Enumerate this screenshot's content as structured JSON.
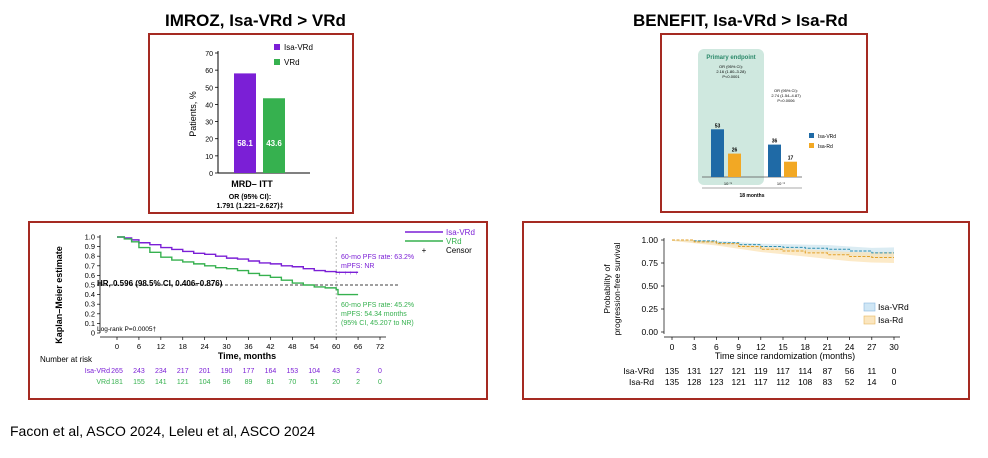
{
  "headings": {
    "left": "IMROZ, Isa-VRd > VRd",
    "right": "BENEFIT, Isa-VRd > Isa-Rd"
  },
  "citation": "Facon et al, ASCO 2024, Leleu et al, ASCO 2024",
  "colors": {
    "purple": "#7b1fd6",
    "green": "#36b14f",
    "blue": "#1f6aa6",
    "orange": "#f2a824",
    "border": "#a52a22",
    "teal_band": "#cfe8df"
  },
  "chart_data": [
    {
      "id": "imroz-mrd",
      "type": "bar",
      "ylabel": "Patients, %",
      "yticks": [
        0,
        10,
        20,
        30,
        40,
        50,
        60,
        70
      ],
      "ylim": [
        0,
        70
      ],
      "category": "MRD– ITT",
      "series": [
        {
          "name": "Isa-VRd",
          "value": 58.1,
          "label": "58.1"
        },
        {
          "name": "VRd",
          "value": 43.6,
          "label": "43.6"
        }
      ],
      "footnote_line1": "OR (95% CI):",
      "footnote_line2": "1.791 (1.221–2.627)‡"
    },
    {
      "id": "benefit-mrd",
      "type": "bar",
      "primary_label": "Primary endpoint",
      "group_labels": [
        "10⁻⁵",
        "10⁻⁶"
      ],
      "xlabel": "18 months",
      "stats": [
        {
          "line1": "OR (95% CI):",
          "line2": "2.16 (1.80–3.28)",
          "line3": "P<0.0001"
        },
        {
          "line1": "OR (95% CI):",
          "line2": "2.74 (1.54–4.87)",
          "line3": "P=0.0006"
        }
      ],
      "series": [
        {
          "name": "Isa-VRd",
          "values": [
            53,
            36
          ]
        },
        {
          "name": "Isa-Rd",
          "values": [
            26,
            17
          ]
        }
      ]
    },
    {
      "id": "imroz-km",
      "type": "line",
      "ylabel": "Kaplan–Meier estimate",
      "xlabel": "Time, months",
      "xticks": [
        0,
        6,
        12,
        18,
        24,
        30,
        36,
        42,
        48,
        54,
        60,
        66,
        72
      ],
      "yticks": [
        "0",
        "0.1",
        "0.2",
        "0.3",
        "0.4",
        "0.5",
        "0.6",
        "0.7",
        "0.8",
        "0.9",
        "1.0"
      ],
      "xlim": [
        0,
        72
      ],
      "ylim": [
        0,
        1
      ],
      "series": [
        {
          "name": "Isa-VRd",
          "x": [
            0,
            2,
            4,
            6,
            9,
            12,
            15,
            18,
            21,
            24,
            27,
            30,
            33,
            36,
            39,
            42,
            45,
            48,
            51,
            54,
            57,
            60,
            62,
            66
          ],
          "y": [
            1.0,
            0.99,
            0.97,
            0.94,
            0.92,
            0.89,
            0.87,
            0.85,
            0.83,
            0.82,
            0.8,
            0.78,
            0.77,
            0.75,
            0.73,
            0.72,
            0.7,
            0.69,
            0.67,
            0.65,
            0.64,
            0.632,
            0.632,
            0.632
          ]
        },
        {
          "name": "VRd",
          "x": [
            0,
            2,
            4,
            6,
            9,
            12,
            15,
            18,
            21,
            24,
            27,
            30,
            33,
            36,
            39,
            42,
            45,
            48,
            51,
            54,
            57,
            60,
            60.5,
            66
          ],
          "y": [
            1.0,
            0.98,
            0.95,
            0.89,
            0.84,
            0.79,
            0.76,
            0.74,
            0.72,
            0.7,
            0.68,
            0.67,
            0.65,
            0.62,
            0.6,
            0.58,
            0.55,
            0.52,
            0.5,
            0.48,
            0.47,
            0.452,
            0.4,
            0.4
          ]
        }
      ],
      "legend": [
        "Isa-VRd",
        "VRd",
        "Censor"
      ],
      "annotations": {
        "hr": "HR, 0.596 (98.5% CI, 0.406–0.876)",
        "logrank": "Log-rank P=0.0005†",
        "isa_rate": "60-mo PFS rate: 63.2%",
        "isa_mpfs": "mPFS: NR",
        "vrd_rate": "60-mo PFS rate: 45.2%",
        "vrd_mpfs": "mPFS: 54.34 months",
        "vrd_ci": "(95% CI, 45.207 to NR)"
      },
      "risk_title": "Number at risk",
      "risk_table": [
        {
          "name": "Isa-VRd",
          "values": [
            "265",
            "243",
            "234",
            "217",
            "201",
            "190",
            "177",
            "164",
            "153",
            "104",
            "43",
            "2",
            "0"
          ]
        },
        {
          "name": "VRd",
          "values": [
            "181",
            "155",
            "141",
            "121",
            "104",
            "96",
            "89",
            "81",
            "70",
            "51",
            "20",
            "2",
            "0"
          ]
        }
      ]
    },
    {
      "id": "benefit-km",
      "type": "line",
      "ylabel_line1": "Probability of",
      "ylabel_line2": "progression-free survival",
      "xlabel": "Time since randomization (months)",
      "xticks": [
        0,
        3,
        6,
        9,
        12,
        15,
        18,
        21,
        24,
        27,
        30
      ],
      "yticks": [
        "0.00",
        "0.25",
        "0.50",
        "0.75",
        "1.00"
      ],
      "xlim": [
        0,
        30
      ],
      "ylim": [
        0,
        1
      ],
      "series": [
        {
          "name": "Isa-VRd",
          "x": [
            0,
            3,
            6,
            9,
            12,
            15,
            18,
            21,
            24,
            27,
            30
          ],
          "y": [
            1.0,
            0.99,
            0.97,
            0.95,
            0.93,
            0.92,
            0.91,
            0.9,
            0.88,
            0.86,
            0.86
          ]
        },
        {
          "name": "Isa-Rd",
          "x": [
            0,
            3,
            6,
            9,
            12,
            15,
            18,
            21,
            24,
            27,
            30
          ],
          "y": [
            1.0,
            0.98,
            0.96,
            0.93,
            0.9,
            0.88,
            0.86,
            0.84,
            0.82,
            0.81,
            0.81
          ]
        }
      ],
      "risk_table": [
        {
          "name": "Isa-VRd",
          "values": [
            "135",
            "131",
            "127",
            "121",
            "119",
            "117",
            "114",
            "87",
            "56",
            "11",
            "0"
          ]
        },
        {
          "name": "Isa-Rd",
          "values": [
            "135",
            "128",
            "123",
            "121",
            "117",
            "112",
            "108",
            "83",
            "52",
            "14",
            "0"
          ]
        }
      ]
    }
  ]
}
